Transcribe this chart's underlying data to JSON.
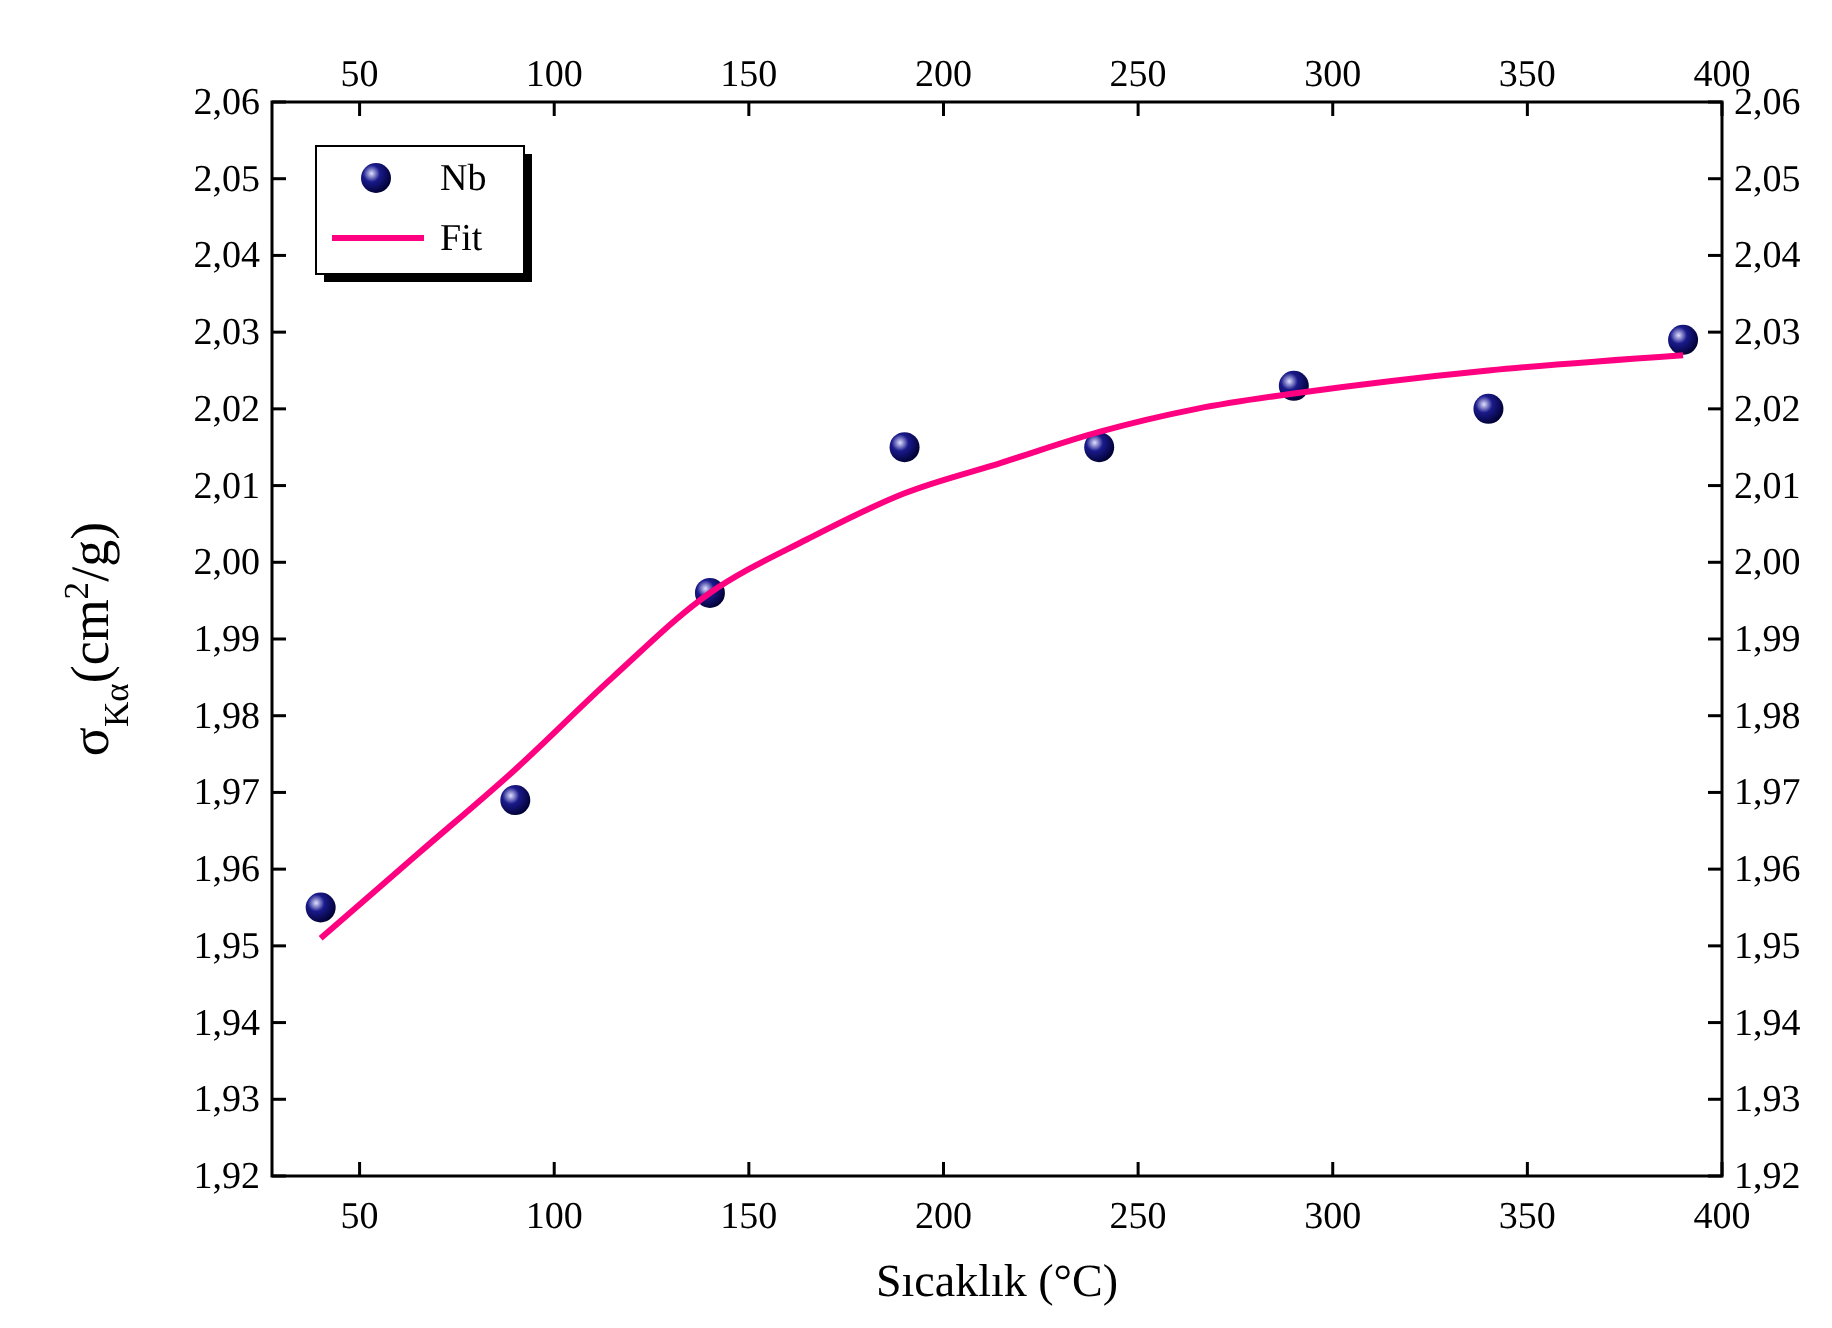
{
  "chart_data": {
    "type": "scatter",
    "xlabel": "Sıcaklık (°C)",
    "ylabel": "σ$_{Kα}$(cm$^{2}$/g)",
    "xlim": [
      27.5,
      400
    ],
    "xticks": [
      50,
      100,
      150,
      200,
      250,
      300,
      350,
      400
    ],
    "x2lim": [
      27.5,
      400
    ],
    "x2ticks": [
      50,
      100,
      150,
      200,
      250,
      300,
      350,
      400
    ],
    "ylim": [
      1.92,
      2.06
    ],
    "yticks": [
      {
        "value": 1.92,
        "label": "1,92"
      },
      {
        "value": 1.93,
        "label": "1,93"
      },
      {
        "value": 1.94,
        "label": "1,94"
      },
      {
        "value": 1.95,
        "label": "1,95"
      },
      {
        "value": 1.96,
        "label": "1,96"
      },
      {
        "value": 1.97,
        "label": "1,97"
      },
      {
        "value": 1.98,
        "label": "1,98"
      },
      {
        "value": 1.99,
        "label": "1,99"
      },
      {
        "value": 2.0,
        "label": "2,00"
      },
      {
        "value": 2.01,
        "label": "2,01"
      },
      {
        "value": 2.02,
        "label": "2,02"
      },
      {
        "value": 2.03,
        "label": "2,03"
      },
      {
        "value": 2.04,
        "label": "2,04"
      },
      {
        "value": 2.05,
        "label": "2,05"
      },
      {
        "value": 2.06,
        "label": "2,06"
      }
    ],
    "y2lim": [
      1.92,
      2.06
    ],
    "y2ticks": [
      {
        "value": 1.92,
        "label": "1,92"
      },
      {
        "value": 1.93,
        "label": "1,93"
      },
      {
        "value": 1.94,
        "label": "1,94"
      },
      {
        "value": 1.95,
        "label": "1,95"
      },
      {
        "value": 1.96,
        "label": "1,96"
      },
      {
        "value": 1.97,
        "label": "1,97"
      },
      {
        "value": 1.98,
        "label": "1,98"
      },
      {
        "value": 1.99,
        "label": "1,99"
      },
      {
        "value": 2.0,
        "label": "2,00"
      },
      {
        "value": 2.01,
        "label": "2,01"
      },
      {
        "value": 2.02,
        "label": "2,02"
      },
      {
        "value": 2.03,
        "label": "2,03"
      },
      {
        "value": 2.04,
        "label": "2,04"
      },
      {
        "value": 2.05,
        "label": "2,05"
      },
      {
        "value": 2.06,
        "label": "2,06"
      }
    ],
    "grid": false,
    "legend": "top left",
    "series": [
      {
        "name": "Nb",
        "type": "scatter",
        "marker": "circle",
        "color": "#1a1a8c",
        "x": [
          40,
          90,
          140,
          190,
          240,
          290,
          340,
          390
        ],
        "values": [
          1.955,
          1.969,
          1.996,
          2.015,
          2.015,
          2.023,
          2.02,
          2.029
        ]
      },
      {
        "name": "Fit",
        "type": "line",
        "marker": "none",
        "line_style": "solid",
        "color": "#ff0080",
        "x": [
          40,
          65,
          90,
          115,
          140,
          165,
          190,
          215,
          240,
          265,
          290,
          340,
          390
        ],
        "values": [
          1.951,
          1.962,
          1.973,
          1.985,
          1.996,
          2.003,
          2.009,
          2.013,
          2.017,
          2.02,
          2.022,
          2.025,
          2.027
        ]
      }
    ]
  }
}
